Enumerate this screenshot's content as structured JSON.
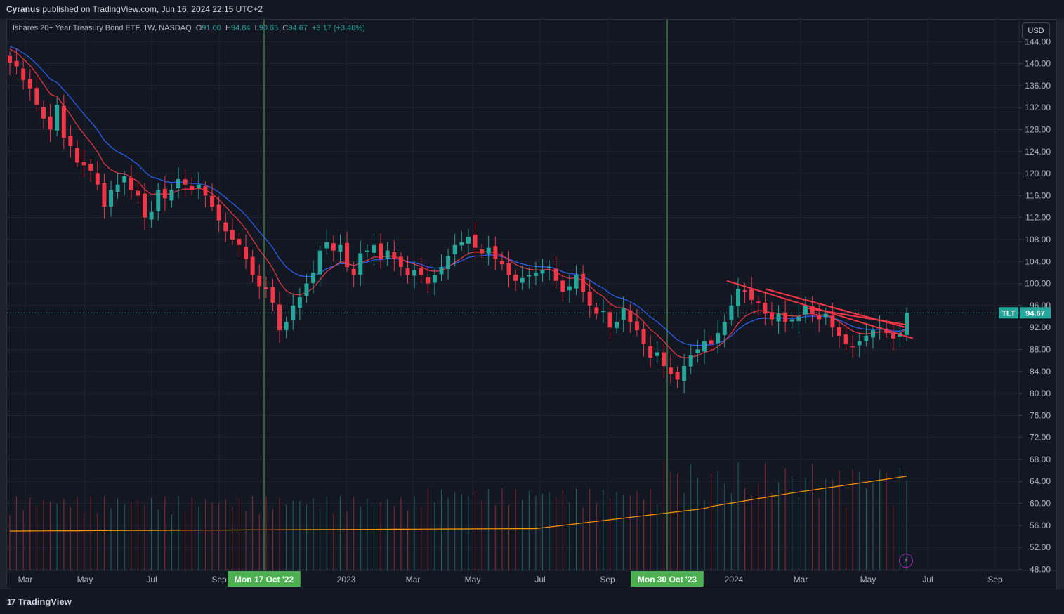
{
  "header": {
    "author": "Cyranus",
    "published_text": "published on TradingView.com, Jun 16, 2024 22:15 UTC+2"
  },
  "legend": {
    "name": "Ishares 20+ Year Treasury Bond ETF, 1W, NASDAQ",
    "o_label": "O",
    "o_value": "91.00",
    "h_label": "H",
    "h_value": "94.84",
    "l_label": "L",
    "l_value": "90.65",
    "c_label": "C",
    "c_value": "94.67",
    "change": "+3.17 (+3.46%)"
  },
  "currency": "USD",
  "symbol_badge": "TLT",
  "last_price_label": "94.67",
  "footer": {
    "logo_text": "TradingView"
  },
  "colors": {
    "up": "#26a69a",
    "down": "#f23645",
    "ma_fast": "#f23645",
    "ma_slow": "#2962ff",
    "volume_ma": "#ff9800",
    "vertical_marker": "#4caf50",
    "trendline": "#f23645",
    "badge": "#26a69a"
  },
  "icons": {
    "bolt": "lightning-icon",
    "logo": "tradingview-logo-icon"
  },
  "chart_data": {
    "type": "candlestick",
    "interval": "1W",
    "symbol": "TLT",
    "price_axis": {
      "ticks": [
        48,
        52,
        56,
        60,
        64,
        68,
        72,
        76,
        80,
        84,
        88,
        92,
        96,
        100,
        104,
        108,
        112,
        116,
        120,
        124,
        128,
        132,
        136,
        140,
        144
      ],
      "range": [
        47.8,
        148.0
      ]
    },
    "time_axis": {
      "labels": [
        "Mar",
        "May",
        "Jul",
        "Sep",
        "Mon 17 Oct '22",
        "2023",
        "Mar",
        "May",
        "Jul",
        "Sep",
        "Mon 30 Oct '23",
        "2024",
        "Mar",
        "May",
        "Jul",
        "Sep"
      ],
      "highlighted": [
        "Mon 17 Oct '22",
        "Mon 30 Oct '23"
      ]
    },
    "vertical_markers": [
      "Mon 17 Oct '22",
      "Mon 30 Oct '23"
    ],
    "closes": [
      140.2,
      139.5,
      137.0,
      135.5,
      132.5,
      130.0,
      128.0,
      132.5,
      126.5,
      125.0,
      122.0,
      121.5,
      120.5,
      118.0,
      114.0,
      117.0,
      118.0,
      119.5,
      117.0,
      116.0,
      112.0,
      113.0,
      117.0,
      115.5,
      117.0,
      119.0,
      118.0,
      117.0,
      118.0,
      116.0,
      114.0,
      111.5,
      109.5,
      108.0,
      107.0,
      104.5,
      101.5,
      99.5,
      99.0,
      96.5,
      91.5,
      93.0,
      96.0,
      97.5,
      100.0,
      102.0,
      106.0,
      107.5,
      106.0,
      107.0,
      103.0,
      101.5,
      105.5,
      106.0,
      107.0,
      104.5,
      106.0,
      104.5,
      103.0,
      101.5,
      102.5,
      101.5,
      100.0,
      101.5,
      103.0,
      105.0,
      107.0,
      107.5,
      108.5,
      106.5,
      105.5,
      106.5,
      104.5,
      103.5,
      101.5,
      100.5,
      101.0,
      101.5,
      102.0,
      102.5,
      103.0,
      100.5,
      98.5,
      99.5,
      101.5,
      98.5,
      96.0,
      94.5,
      95.0,
      92.0,
      93.0,
      95.5,
      93.0,
      91.5,
      89.0,
      86.5,
      87.5,
      85.0,
      83.5,
      82.5,
      85.0,
      87.0,
      88.0,
      89.5,
      89.0,
      91.0,
      93.0,
      96.0,
      99.0,
      98.5,
      97.0,
      96.5,
      94.5,
      93.5,
      94.5,
      93.0,
      93.5,
      94.0,
      96.0,
      94.5,
      93.5,
      94.5,
      92.0,
      90.5,
      89.0,
      88.5,
      89.5,
      90.5,
      91.5,
      92.0,
      91.0,
      90.0,
      91.0,
      94.67
    ],
    "ma_fast": "21-period EMA (red)",
    "ma_slow": "34-period EMA (blue)",
    "trendlines": [
      {
        "from_price": 100.5,
        "to_price": 90.0
      },
      {
        "from_price": 99.0,
        "to_price": 92.0
      },
      {
        "from_price": 95.5,
        "to_price": 92.5
      }
    ],
    "volume_ma_label": "volume moving average",
    "last_price": 94.67
  }
}
